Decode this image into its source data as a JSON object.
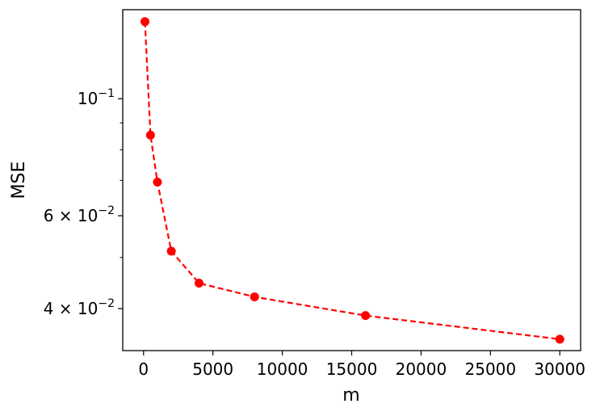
{
  "chart_data": {
    "type": "line",
    "title": "",
    "xlabel": "m",
    "ylabel": "MSE",
    "yscale": "log",
    "xlim": [
      -1500,
      31500
    ],
    "ylim": [
      0.0333,
      0.1475
    ],
    "grid": false,
    "legend": "none",
    "x_ticks": [
      {
        "value": 0,
        "label": "0"
      },
      {
        "value": 5000,
        "label": "5000"
      },
      {
        "value": 10000,
        "label": "10000"
      },
      {
        "value": 15000,
        "label": "15000"
      },
      {
        "value": 20000,
        "label": "20000"
      },
      {
        "value": 25000,
        "label": "25000"
      },
      {
        "value": 30000,
        "label": "30000"
      }
    ],
    "y_major_ticks": [
      {
        "value": 0.1,
        "base": "10",
        "exp": "−1"
      },
      {
        "value": 0.06,
        "coef": "6 × ",
        "base": "10",
        "exp": "−2"
      },
      {
        "value": 0.04,
        "coef": "4 × ",
        "base": "10",
        "exp": "−2"
      }
    ],
    "y_minor_ticks": [
      0.09,
      0.08,
      0.07,
      0.05
    ],
    "series": [
      {
        "color": "#ff0000",
        "linestyle": "dashed",
        "marker": "circle",
        "x": [
          100,
          500,
          1000,
          2000,
          4000,
          8000,
          16000,
          30000
        ],
        "y": [
          0.14,
          0.0853,
          0.0695,
          0.0514,
          0.0447,
          0.0421,
          0.0388,
          0.035
        ]
      }
    ]
  }
}
